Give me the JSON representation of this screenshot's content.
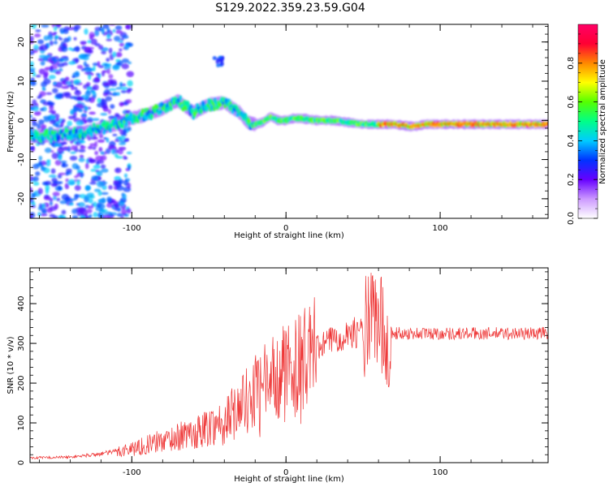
{
  "title": "S129.2022.359.23.59.G04",
  "chart_data": [
    {
      "type": "heatmap",
      "title": "S129.2022.359.23.59.G04",
      "xlabel": "Height of straight line (km)",
      "ylabel": "Frequency (Hz)",
      "xlim": [
        -166,
        170
      ],
      "ylim": [
        -25,
        24.5
      ],
      "xticks": [
        -100,
        0,
        100
      ],
      "yticks": [
        -20,
        -10,
        0,
        10,
        20
      ],
      "colorbar": {
        "label": "Normalized spectral amplitude",
        "range": [
          0,
          1
        ],
        "ticks": [
          0.0,
          0.2,
          0.4,
          0.6,
          0.8
        ],
        "colors": [
          "#ffffff",
          "#cc99ff",
          "#6600ff",
          "#0033ff",
          "#00ccff",
          "#00ff88",
          "#55ff00",
          "#ffff00",
          "#ff8800",
          "#ff0033",
          "#ff0066"
        ]
      },
      "ridge": {
        "x": [
          -166,
          -150,
          -140,
          -130,
          -120,
          -110,
          -100,
          -90,
          -80,
          -70,
          -60,
          -50,
          -40,
          -30,
          -25,
          -20,
          -15,
          -10,
          -5,
          0,
          5,
          10,
          20,
          30,
          40,
          50,
          60,
          70,
          80,
          85,
          90,
          95,
          100,
          120,
          140,
          160,
          170
        ],
        "y": [
          -4,
          -4,
          -3.5,
          -3,
          -2,
          -1,
          0.5,
          1.5,
          3,
          5,
          2,
          4,
          4.5,
          2,
          -0.5,
          -1,
          -0.5,
          1,
          0,
          0,
          0.5,
          0.5,
          0,
          0,
          -0.5,
          -1,
          -1,
          -1,
          -1.5,
          -1.5,
          -1,
          -1,
          -1,
          -1,
          -1,
          -1,
          -1
        ]
      }
    },
    {
      "type": "line",
      "xlabel": "Height of straight line (km)",
      "ylabel": "SNR (10 * v/v)",
      "xlim": [
        -166,
        170
      ],
      "ylim": [
        0,
        490
      ],
      "xticks": [
        -100,
        0,
        100
      ],
      "yticks": [
        0,
        100,
        200,
        300,
        400
      ],
      "color": "#ee3333",
      "envelope": {
        "x": [
          -166,
          -140,
          -120,
          -100,
          -80,
          -60,
          -40,
          -30,
          -20,
          -10,
          0,
          10,
          20,
          30,
          40,
          50,
          55,
          60,
          65,
          70,
          80,
          100,
          120,
          140,
          160,
          170
        ],
        "y": [
          12,
          14,
          22,
          35,
          55,
          75,
          105,
          140,
          180,
          210,
          235,
          255,
          285,
          310,
          325,
          330,
          335,
          340,
          332,
          325,
          325,
          325,
          325,
          325,
          325,
          327
        ]
      }
    }
  ]
}
